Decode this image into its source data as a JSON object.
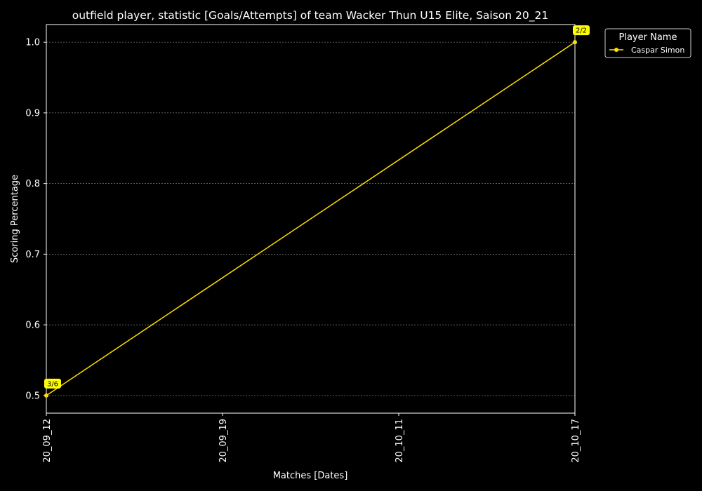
{
  "colors": {
    "background": "#000000",
    "series": "#ffe000",
    "annotation_bg": "#ffff00",
    "grid": "#808080",
    "axes": "#ffffff"
  },
  "chart_data": {
    "type": "line",
    "title": "outfield player, statistic [Goals/Attempts] of team Wacker Thun U15 Elite, Saison 20_21",
    "xlabel": "Matches [Dates]",
    "ylabel": "Scoring Percentage",
    "categories": [
      "20_09_12",
      "20_09_19",
      "20_10_11",
      "20_10_17"
    ],
    "ylim": [
      0.475,
      1.025
    ],
    "yticks": [
      0.5,
      0.6,
      0.7,
      0.8,
      0.9,
      1.0
    ],
    "grid": "horizontal",
    "legend": {
      "title": "Player Name",
      "placement": "outside-right"
    },
    "series": [
      {
        "name": "Caspar Simon",
        "points": [
          {
            "x": "20_09_12",
            "y": 0.5,
            "label": "3/6"
          },
          {
            "x": "20_10_17",
            "y": 1.0,
            "label": "2/2"
          }
        ]
      }
    ]
  }
}
